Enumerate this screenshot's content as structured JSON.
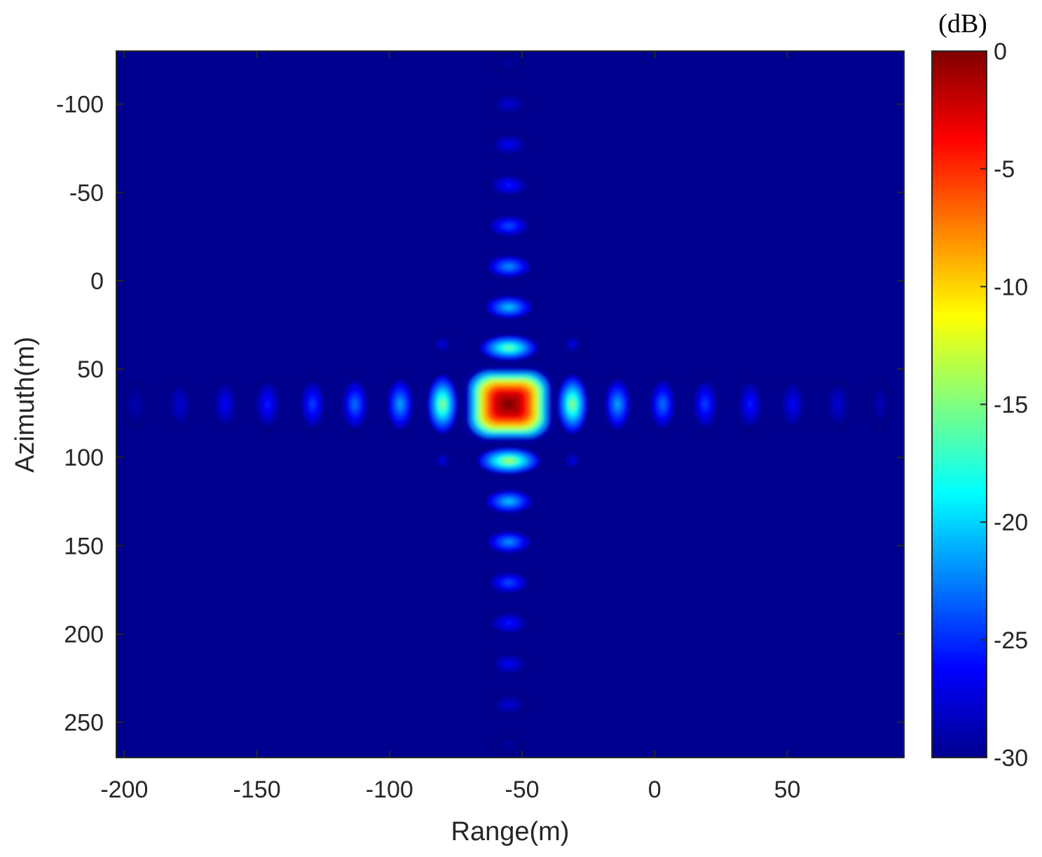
{
  "chart_data": {
    "type": "heatmap",
    "xlabel": "Range(m)",
    "ylabel": "Azimuth(m)",
    "xlim": [
      -203,
      94
    ],
    "ylim": [
      -130,
      270
    ],
    "y_direction": "reversed",
    "xticks": [
      -200,
      -150,
      -100,
      -50,
      0,
      50
    ],
    "yticks": [
      -100,
      -50,
      0,
      50,
      100,
      150,
      200,
      250
    ],
    "grid": false,
    "colormap": "jet",
    "colorbar": {
      "unit": "(dB)",
      "range": [
        -30,
        0
      ],
      "ticks": [
        0,
        -5,
        -10,
        -15,
        -20,
        -25,
        -30
      ]
    },
    "peak": {
      "range": -55,
      "azimuth": 70,
      "value_db": 0
    },
    "range_sidelobe_spacing_m": 16.5,
    "azimuth_sidelobe_spacing_m": 23,
    "range_sidelobes": [
      {
        "range": -196,
        "value_db": -28.5
      },
      {
        "range": -179,
        "value_db": -27.5
      },
      {
        "range": -162,
        "value_db": -26.5
      },
      {
        "range": -146,
        "value_db": -25.5
      },
      {
        "range": -129,
        "value_db": -24.5
      },
      {
        "range": -113,
        "value_db": -23
      },
      {
        "range": -96,
        "value_db": -21.5
      },
      {
        "range": -80,
        "value_db": -15
      },
      {
        "range": -31,
        "value_db": -15
      },
      {
        "range": -14,
        "value_db": -21.5
      },
      {
        "range": 3,
        "value_db": -23
      },
      {
        "range": 19,
        "value_db": -24.5
      },
      {
        "range": 36,
        "value_db": -25.5
      },
      {
        "range": 52,
        "value_db": -26.5
      },
      {
        "range": 69,
        "value_db": -27.5
      },
      {
        "range": 85,
        "value_db": -28.5
      }
    ],
    "azimuth_sidelobes": [
      {
        "azimuth": -123,
        "value_db": -29
      },
      {
        "azimuth": -100,
        "value_db": -27.5
      },
      {
        "azimuth": -77,
        "value_db": -26.5
      },
      {
        "azimuth": -54,
        "value_db": -25.5
      },
      {
        "azimuth": -31,
        "value_db": -24
      },
      {
        "azimuth": -8,
        "value_db": -22
      },
      {
        "azimuth": 15,
        "value_db": -20.5
      },
      {
        "azimuth": 38,
        "value_db": -16
      },
      {
        "azimuth": 102,
        "value_db": -14
      },
      {
        "azimuth": 125,
        "value_db": -20.5
      },
      {
        "azimuth": 148,
        "value_db": -22
      },
      {
        "azimuth": 171,
        "value_db": -24
      },
      {
        "azimuth": 194,
        "value_db": -25.5
      },
      {
        "azimuth": 217,
        "value_db": -26.5
      },
      {
        "azimuth": 240,
        "value_db": -27.5
      },
      {
        "azimuth": 263,
        "value_db": -29
      }
    ],
    "diagonal_sidelobes": [
      {
        "range": -80,
        "azimuth": 36,
        "value_db": -27
      },
      {
        "range": -31,
        "azimuth": 36,
        "value_db": -27
      },
      {
        "range": -80,
        "azimuth": 102,
        "value_db": -27
      },
      {
        "range": -31,
        "azimuth": 102,
        "value_db": -27
      }
    ]
  }
}
